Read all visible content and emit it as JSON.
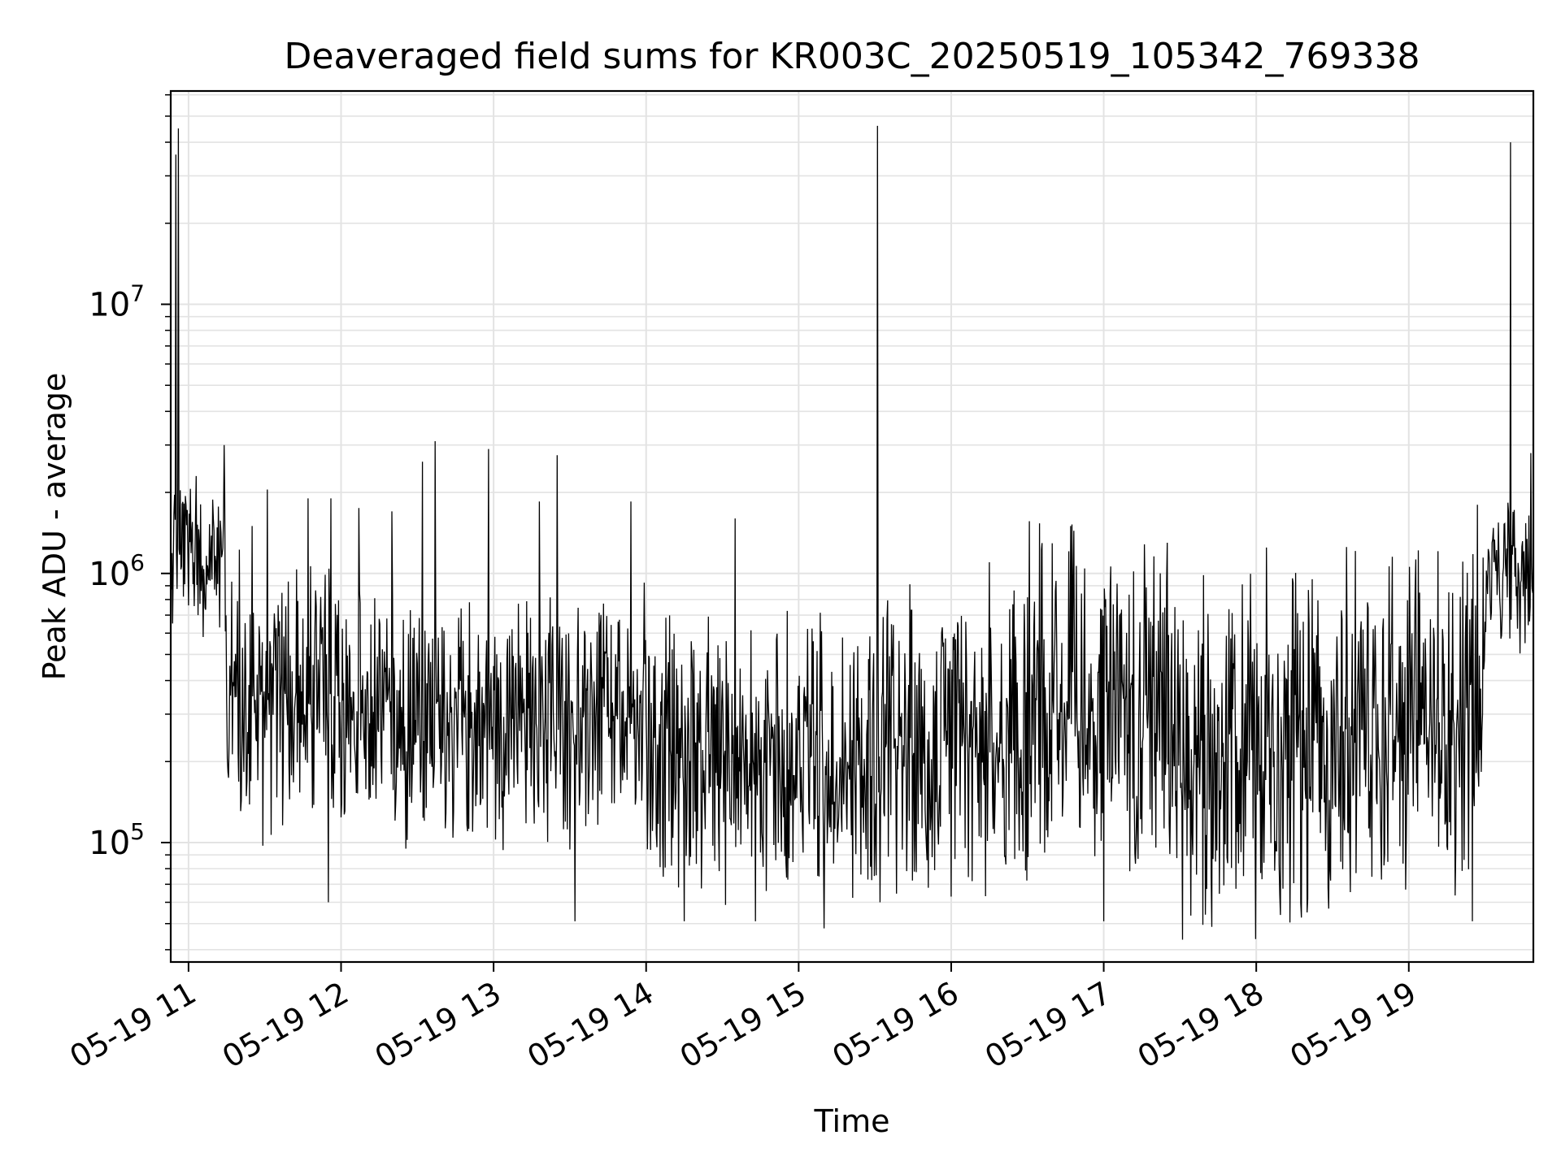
{
  "chart_data": {
    "type": "line",
    "title": "Deaveraged field sums for KR003C_20250519_105342_769338",
    "xlabel": "Time",
    "ylabel": "Peak ADU - average",
    "x_type": "time",
    "x_range": [
      "2025-05-19 10:53",
      "2025-05-19 19:49"
    ],
    "ylim": [
      36000,
      62000000
    ],
    "y_scale": "log",
    "grid": "on (major and minor)",
    "x_tick_labels": [
      "05-19 11",
      "05-19 12",
      "05-19 13",
      "05-19 14",
      "05-19 15",
      "05-19 16",
      "05-19 17",
      "05-19 18",
      "05-19 19"
    ],
    "x_tick_times": [
      "2025-05-19 11:00",
      "2025-05-19 12:00",
      "2025-05-19 13:00",
      "2025-05-19 14:00",
      "2025-05-19 15:00",
      "2025-05-19 16:00",
      "2025-05-19 17:00",
      "2025-05-19 18:00",
      "2025-05-19 19:00"
    ],
    "y_tick_labels": [
      {
        "base": "10",
        "exp": "5",
        "value": 100000
      },
      {
        "base": "10",
        "exp": "6",
        "value": 1000000
      },
      {
        "base": "10",
        "exp": "7",
        "value": 10000000
      }
    ],
    "series": [
      {
        "color": "#000000",
        "segments": [
          {
            "start": "2025-05-19 10:53",
            "end": "2025-05-19 11:15",
            "low": 700000,
            "high": 2000000
          },
          {
            "start": "2025-05-19 11:15",
            "end": "2025-05-19 12:00",
            "low": 150000,
            "high": 800000
          },
          {
            "start": "2025-05-19 12:00",
            "end": "2025-05-19 14:00",
            "low": 130000,
            "high": 600000
          },
          {
            "start": "2025-05-19 14:00",
            "end": "2025-05-19 15:30",
            "low": 90000,
            "high": 500000
          },
          {
            "start": "2025-05-19 15:30",
            "end": "2025-05-19 16:30",
            "low": 90000,
            "high": 550000
          },
          {
            "start": "2025-05-19 16:30",
            "end": "2025-05-19 17:30",
            "low": 120000,
            "high": 900000
          },
          {
            "start": "2025-05-19 17:30",
            "end": "2025-05-19 18:30",
            "low": 70000,
            "high": 700000
          },
          {
            "start": "2025-05-19 18:30",
            "end": "2025-05-19 19:30",
            "low": 100000,
            "high": 800000
          },
          {
            "start": "2025-05-19 19:30",
            "end": "2025-05-19 19:49",
            "low": 600000,
            "high": 1500000
          }
        ],
        "peaks": [
          {
            "time": "2025-05-19 10:55",
            "value": 36000000
          },
          {
            "time": "2025-05-19 10:56",
            "value": 45000000
          },
          {
            "time": "2025-05-19 11:03",
            "value": 2300000
          },
          {
            "time": "2025-05-19 11:14",
            "value": 3000000
          },
          {
            "time": "2025-05-19 11:25",
            "value": 1500000
          },
          {
            "time": "2025-05-19 11:31",
            "value": 2050000
          },
          {
            "time": "2025-05-19 11:47",
            "value": 1900000
          },
          {
            "time": "2025-05-19 11:56",
            "value": 1900000
          },
          {
            "time": "2025-05-19 12:07",
            "value": 1750000
          },
          {
            "time": "2025-05-19 12:20",
            "value": 1700000
          },
          {
            "time": "2025-05-19 12:32",
            "value": 2600000
          },
          {
            "time": "2025-05-19 12:37",
            "value": 3100000
          },
          {
            "time": "2025-05-19 12:58",
            "value": 2900000
          },
          {
            "time": "2025-05-19 13:18",
            "value": 1850000
          },
          {
            "time": "2025-05-19 13:25",
            "value": 2750000
          },
          {
            "time": "2025-05-19 13:54",
            "value": 1850000
          },
          {
            "time": "2025-05-19 14:35",
            "value": 1600000
          },
          {
            "time": "2025-05-19 15:31",
            "value": 46000000
          },
          {
            "time": "2025-05-19 16:15",
            "value": 1100000
          },
          {
            "time": "2025-05-19 16:47",
            "value": 1500000
          },
          {
            "time": "2025-05-19 17:25",
            "value": 1300000
          },
          {
            "time": "2025-05-19 19:27",
            "value": 1800000
          },
          {
            "time": "2025-05-19 19:40",
            "value": 40000000
          },
          {
            "time": "2025-05-19 19:48",
            "value": 2800000
          }
        ],
        "dips": [
          {
            "time": "2025-05-19 11:55",
            "value": 60000
          },
          {
            "time": "2025-05-19 13:32",
            "value": 51000
          },
          {
            "time": "2025-05-19 14:15",
            "value": 51000
          },
          {
            "time": "2025-05-19 14:43",
            "value": 51000
          },
          {
            "time": "2025-05-19 15:10",
            "value": 48000
          },
          {
            "time": "2025-05-19 15:32",
            "value": 60000
          },
          {
            "time": "2025-05-19 16:00",
            "value": 63000
          },
          {
            "time": "2025-05-19 17:00",
            "value": 51000
          },
          {
            "time": "2025-05-19 17:40",
            "value": 54000
          },
          {
            "time": "2025-05-19 18:20",
            "value": 55000
          },
          {
            "time": "2025-05-19 19:25",
            "value": 51000
          }
        ]
      }
    ]
  }
}
